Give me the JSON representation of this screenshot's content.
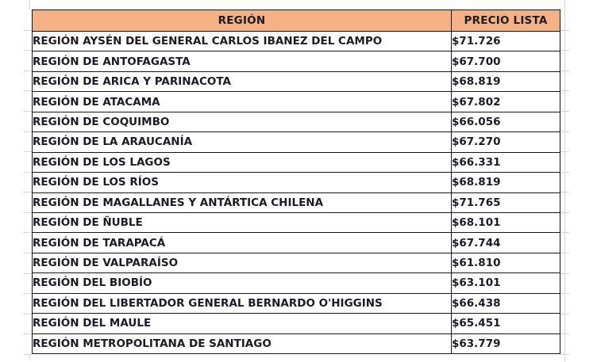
{
  "chart_data": {
    "type": "table",
    "title": "",
    "columns": [
      "REGIÓN",
      "PRECIO LISTA"
    ],
    "rows": [
      [
        "REGIÓN AYSÉN DEL GENERAL CARLOS IBANEZ DEL CAMPO",
        "$71.726"
      ],
      [
        "REGIÓN DE ANTOFAGASTA",
        "$67.700"
      ],
      [
        "REGIÓN DE ARICA Y PARINACOTA",
        "$68.819"
      ],
      [
        "REGIÓN DE ATACAMA",
        "$67.802"
      ],
      [
        "REGIÓN DE COQUIMBO",
        "$66.056"
      ],
      [
        "REGIÓN DE LA ARAUCANÍA",
        "$67.270"
      ],
      [
        "REGIÓN DE LOS LAGOS",
        "$66.331"
      ],
      [
        "REGIÓN DE LOS RÍOS",
        "$68.819"
      ],
      [
        "REGIÓN DE MAGALLANES Y ANTÁRTICA CHILENA",
        "$71.765"
      ],
      [
        "REGIÓN DE ÑUBLE",
        "$68.101"
      ],
      [
        "REGIÓN DE TARAPACÁ",
        "$67.744"
      ],
      [
        "REGIÓN DE VALPARAÍSO",
        "$61.810"
      ],
      [
        "REGIÓN DEL BIOBÍO",
        "$63.101"
      ],
      [
        "REGIÓN DEL LIBERTADOR GENERAL BERNARDO O'HIGGINS",
        "$66.438"
      ],
      [
        "REGIÓN DEL MAULE",
        "$65.451"
      ],
      [
        "REGIÓN METROPOLITANA DE SANTIAGO",
        "$63.779"
      ]
    ],
    "prices_numeric": [
      71726,
      67700,
      68819,
      67802,
      66056,
      67270,
      66331,
      68819,
      71765,
      68101,
      67744,
      61810,
      63101,
      66438,
      65451,
      63779
    ],
    "layout": {
      "legend": "none",
      "grid": "faint-spreadsheet-gridlines-outside-table",
      "header_row": true
    }
  },
  "colors": {
    "header_bg": "#F4B183",
    "border": "#161616",
    "text": "#1b1b26",
    "gridline": "#d4d7da",
    "background": "#ffffff"
  }
}
